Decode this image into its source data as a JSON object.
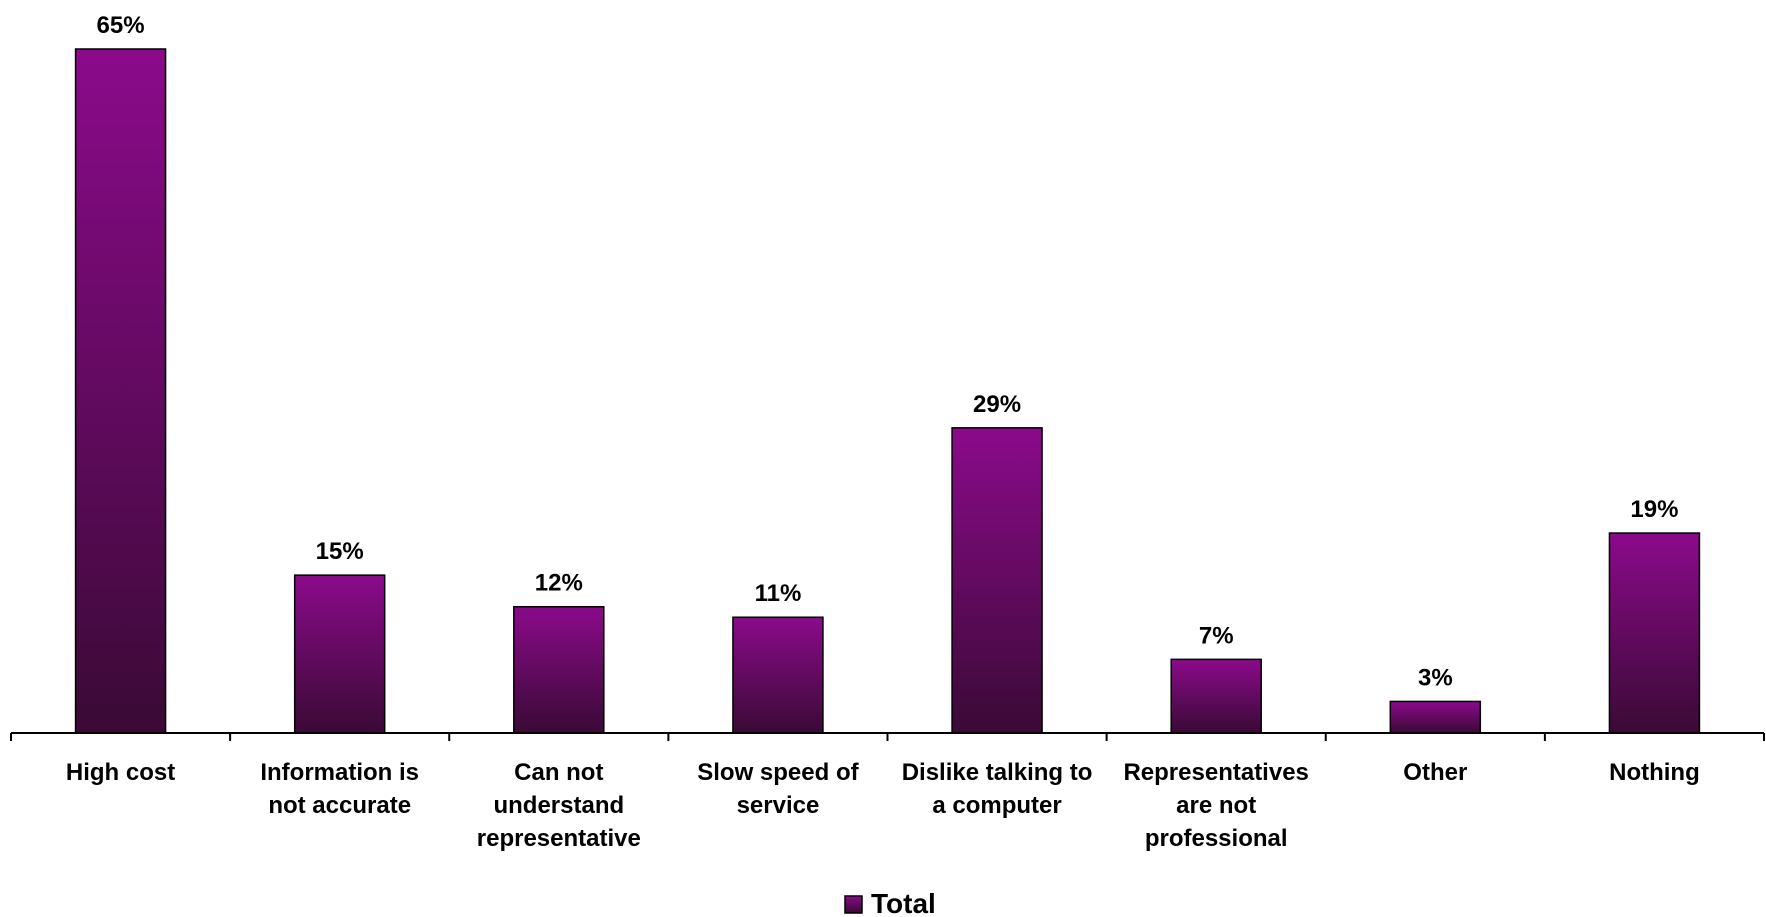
{
  "chart_data": {
    "type": "bar",
    "categories": [
      "High cost",
      "Information is not accurate",
      "Can not understand representative",
      "Slow speed of service",
      "Dislike talking to a computer",
      "Representatives are not professional",
      "Other",
      "Nothing"
    ],
    "category_label_lines": [
      [
        "High cost"
      ],
      [
        "Information is",
        "not accurate"
      ],
      [
        "Can not",
        "understand",
        "representative"
      ],
      [
        "Slow speed of",
        "service"
      ],
      [
        "Dislike talking to",
        "a computer"
      ],
      [
        "Representatives",
        "are not",
        "professional"
      ],
      [
        "Other"
      ],
      [
        "Nothing"
      ]
    ],
    "series": [
      {
        "name": "Total",
        "values": [
          65,
          15,
          12,
          11,
          29,
          7,
          3,
          19
        ]
      }
    ],
    "data_labels": [
      "65%",
      "15%",
      "12%",
      "11%",
      "29%",
      "7%",
      "3%",
      "19%"
    ],
    "ylim": [
      0,
      65
    ],
    "grid": false,
    "legend_position": "bottom",
    "colors": {
      "bar_top": "#8b0a8b",
      "bar_bottom": "#3a0a35",
      "bar_stroke": "#000000"
    }
  }
}
